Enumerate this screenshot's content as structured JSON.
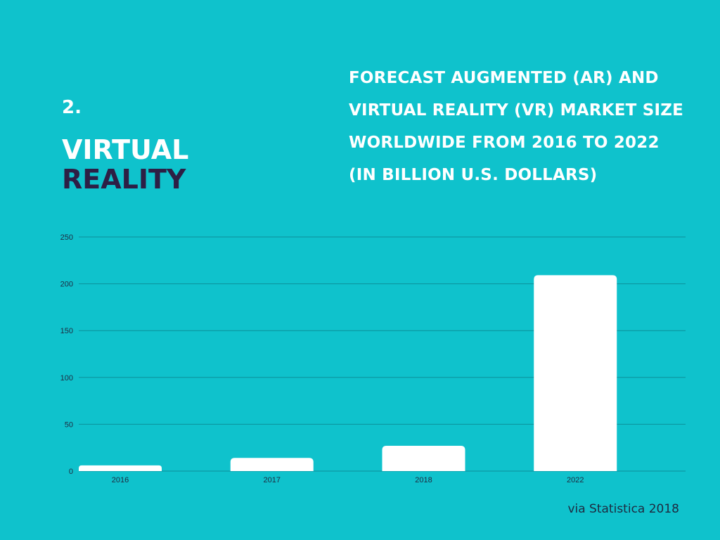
{
  "header": {
    "number": "2.",
    "heading_line1": "VIRTUAL",
    "heading_line2": "REALITY",
    "title_lines": [
      "FORECAST AUGMENTED (AR) AND",
      "VIRTUAL REALITY (VR) MARKET SIZE",
      "WORLDWIDE FROM 2016 TO 2022",
      "(IN BILLION U.S. DOLLARS)"
    ]
  },
  "source": "via Statistica 2018",
  "colors": {
    "background": "#0fc2cc",
    "bar": "#ffffff",
    "gridline": "#0c8f9a",
    "heading_accent": "#2d1f45",
    "tick_text": "#1e2a40"
  },
  "chart_data": {
    "type": "bar",
    "title": "FORECAST AUGMENTED (AR) AND VIRTUAL REALITY (VR) MARKET SIZE WORLDWIDE FROM 2016 TO 2022 (IN BILLION U.S. DOLLARS)",
    "xlabel": "",
    "ylabel": "",
    "categories": [
      "2016",
      "2017",
      "2018",
      "2022"
    ],
    "values": [
      6.1,
      14.1,
      27,
      209.2
    ],
    "ylim": [
      0,
      250
    ],
    "yticks": [
      0,
      50,
      100,
      150,
      200,
      250
    ],
    "grid": true,
    "legend": "none"
  }
}
